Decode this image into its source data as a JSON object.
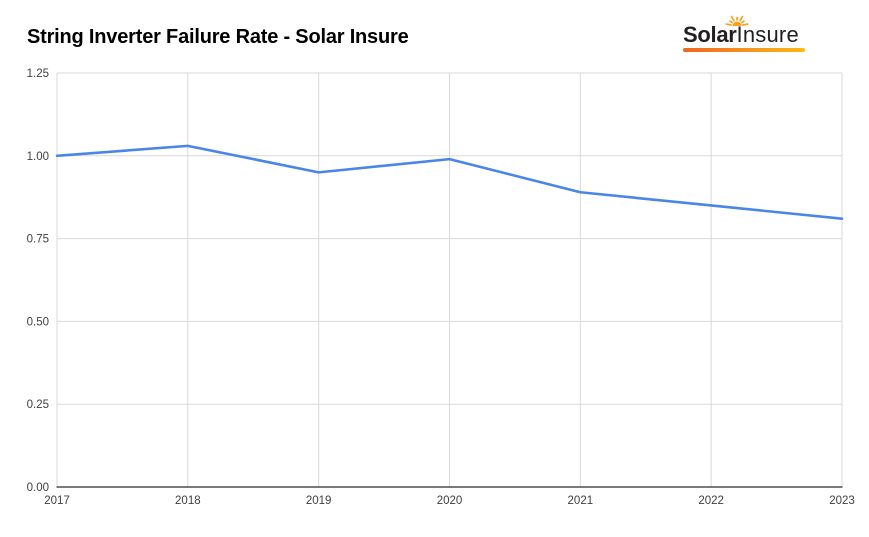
{
  "header": {
    "title": "String Inverter Failure Rate - Solar Insure",
    "logo": {
      "part1": "Solar",
      "part2": "Insure",
      "sun_icon": "sun-rays-icon",
      "text_color": "#231f20",
      "underline_gradient": [
        "#f16522",
        "#fdb913"
      ],
      "sun_color": "#f9a11b"
    }
  },
  "chart_data": {
    "type": "line",
    "title": "String Inverter Failure Rate - Solar Insure",
    "x": [
      "2017",
      "2018",
      "2019",
      "2020",
      "2021",
      "2022",
      "2023"
    ],
    "series": [
      {
        "name": "string-inverter-failure-rate",
        "values": [
          1.0,
          1.03,
          0.95,
          0.99,
          0.89,
          0.85,
          0.81
        ],
        "color": "#4a86e8"
      }
    ],
    "xlabel": "",
    "ylabel": "",
    "ylim": [
      0,
      1.25
    ],
    "yticks": [
      0,
      0.25,
      0.5,
      0.75,
      1,
      1.25
    ],
    "ytick_labels": [
      "0.00",
      "0.25",
      "0.50",
      "0.75",
      "1.00",
      "1.25"
    ],
    "grid": true,
    "legend": false,
    "gridline_color": "#d9d9d9",
    "axis_line_color": "#2b2b2b",
    "tick_label_color": "#404040"
  }
}
